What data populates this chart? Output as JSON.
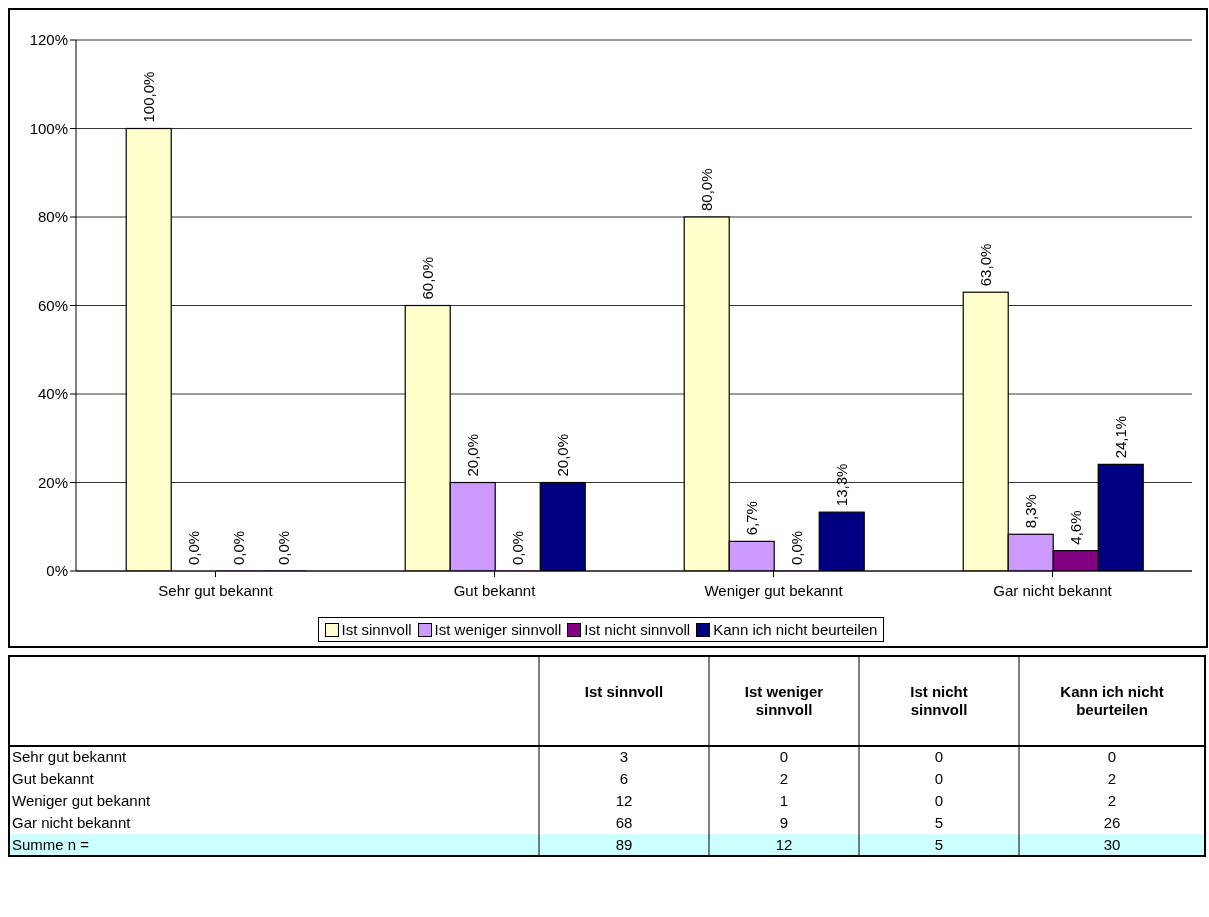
{
  "chart_data": [
    {
      "type": "bar",
      "categories": [
        "Sehr gut bekannt",
        "Gut bekannt",
        "Weniger gut bekannt",
        "Gar nicht bekannt"
      ],
      "series": [
        {
          "name": "Ist sinnvoll",
          "color": "#ffffcc",
          "values": [
            100,
            60,
            80,
            63
          ],
          "value_labels": [
            "100,0%",
            "60,0%",
            "80,0%",
            "63,0%"
          ]
        },
        {
          "name": "Ist weniger sinnvoll",
          "color": "#cc99ff",
          "values": [
            0,
            20,
            6.7,
            8.3
          ],
          "value_labels": [
            "0,0%",
            "20,0%",
            "6,7%",
            "8,3%"
          ]
        },
        {
          "name": "Ist nicht sinnvoll",
          "color": "#800080",
          "values": [
            0,
            0,
            0,
            4.6
          ],
          "value_labels": [
            "0,0%",
            "0,0%",
            "0,0%",
            "4,6%"
          ]
        },
        {
          "name": "Kann ich nicht beurteilen",
          "color": "#000080",
          "values": [
            0,
            20,
            13.3,
            24.1
          ],
          "value_labels": [
            "0,0%",
            "20,0%",
            "13,3%",
            "24,1%"
          ]
        }
      ],
      "ylim": [
        0,
        120
      ],
      "yticks": [
        {
          "value": 0,
          "label": "0%"
        },
        {
          "value": 20,
          "label": "20%"
        },
        {
          "value": 40,
          "label": "40%"
        },
        {
          "value": 60,
          "label": "60%"
        },
        {
          "value": 80,
          "label": "80%"
        },
        {
          "value": 100,
          "label": "100%"
        },
        {
          "value": 120,
          "label": "120%"
        }
      ],
      "grid": "y",
      "legend": "bottom"
    },
    {
      "type": "other",
      "categories": [
        "Ist sinnvoll",
        "Ist weniger sinnvoll",
        "Ist nicht sinnvoll",
        "Kann ich nicht beurteilen"
      ],
      "series": [
        {
          "name": "Sehr gut bekannt",
          "values": [
            3,
            0,
            0,
            0
          ]
        },
        {
          "name": "Gut bekannt",
          "values": [
            6,
            2,
            0,
            2
          ]
        },
        {
          "name": "Weniger gut bekannt",
          "values": [
            12,
            1,
            0,
            2
          ]
        },
        {
          "name": "Gar nicht bekannt",
          "values": [
            68,
            9,
            5,
            26
          ]
        },
        {
          "name": "Summe n =",
          "values": [
            89,
            12,
            5,
            30
          ]
        }
      ],
      "data_labels": true
    }
  ]
}
